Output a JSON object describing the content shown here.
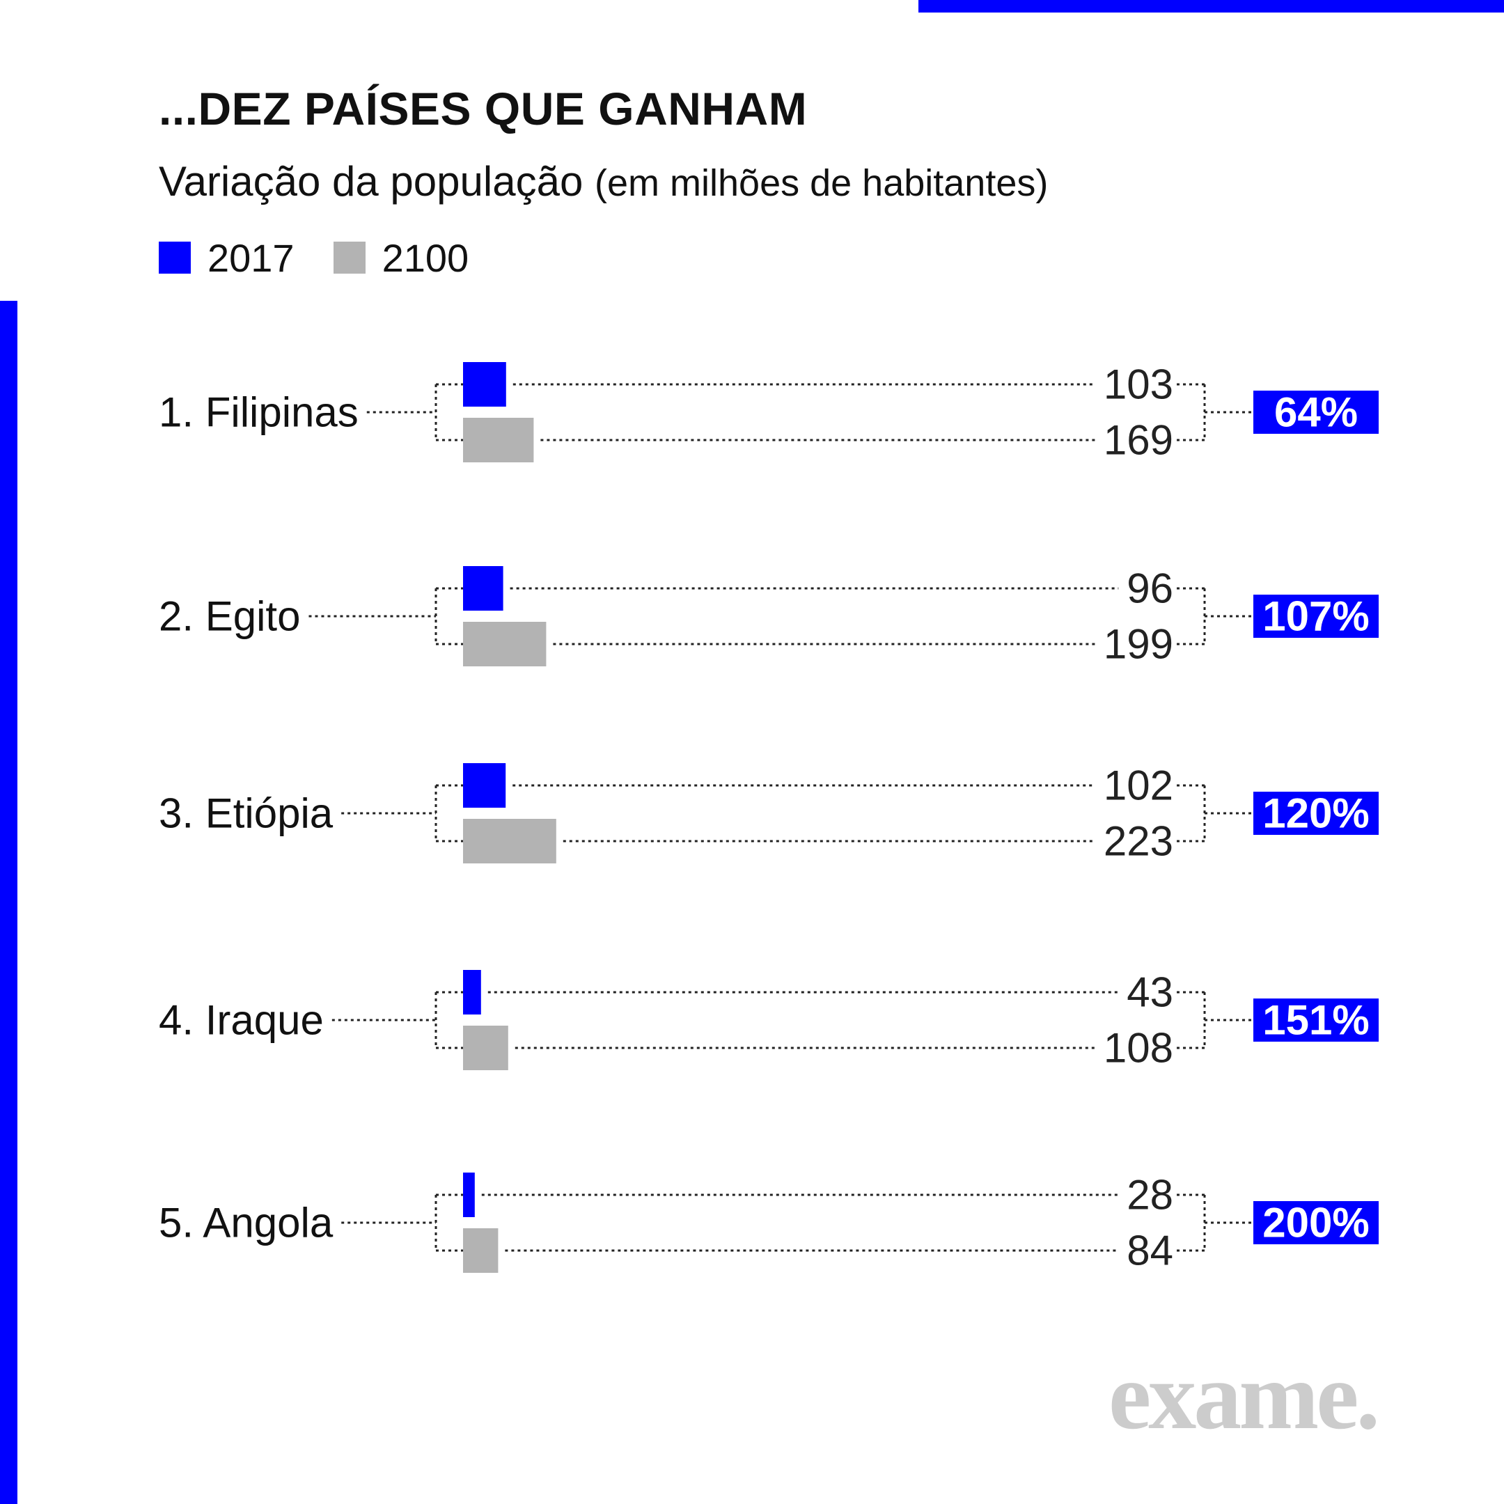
{
  "title": "...DEZ PAÍSES QUE GANHAM",
  "subtitle": "Variação da população",
  "subtitle_unit": "(em milhões de habitantes)",
  "legend": [
    {
      "label": "2017",
      "color": "#0000ff"
    },
    {
      "label": "2100",
      "color": "#b3b3b3"
    }
  ],
  "colors": {
    "accent": "#0000ff",
    "bar2100": "#b3b3b3",
    "logo": "#cccccc"
  },
  "logo": "exame.",
  "chart_data": {
    "type": "bar",
    "orientation": "horizontal",
    "categories": [
      "1. Filipinas",
      "2. Egito",
      "3. Etiópia",
      "4. Iraque",
      "5. Angola"
    ],
    "series": [
      {
        "name": "2017",
        "values": [
          103,
          96,
          102,
          43,
          28
        ]
      },
      {
        "name": "2100",
        "values": [
          169,
          199,
          223,
          108,
          84
        ]
      }
    ],
    "value_labels_2017": [
      "103",
      "96",
      "102",
      "43",
      "28"
    ],
    "value_labels_2100": [
      "169",
      "199",
      "223",
      "108",
      "84"
    ],
    "change_labels": [
      "64%",
      "107%",
      "120%",
      "151%",
      "200%"
    ],
    "grid": false
  }
}
